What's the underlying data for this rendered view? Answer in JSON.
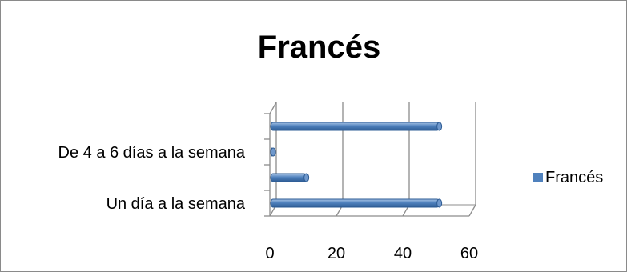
{
  "chart_data": {
    "type": "bar",
    "orientation": "horizontal",
    "title": "Francés",
    "xlabel": "",
    "ylabel": "",
    "categories": [
      "Un día a la semana",
      "",
      "De 4 a 6 días a la semana",
      ""
    ],
    "series": [
      {
        "name": "Francés",
        "values": [
          51,
          11,
          1,
          51
        ]
      }
    ],
    "xlim": [
      0,
      60
    ],
    "x_ticks": [
      "0",
      "20",
      "40",
      "60"
    ],
    "grid": true,
    "legend_position": "right",
    "colors": {
      "bar": "#4f81bd",
      "bar_dark": "#2e5c94",
      "grid": "#8c8c8c"
    }
  }
}
